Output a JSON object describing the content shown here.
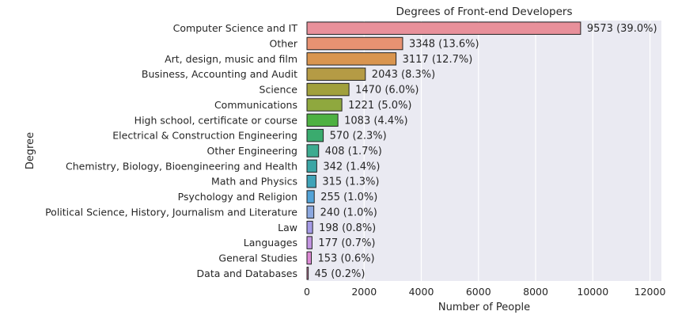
{
  "chart_data": {
    "type": "bar",
    "orientation": "horizontal",
    "title": "Degrees of Front-end Developers",
    "xlabel": "Number of People",
    "ylabel": "Degree",
    "xlim": [
      0,
      12400
    ],
    "xticks": [
      0,
      2000,
      4000,
      6000,
      8000,
      10000,
      12000
    ],
    "grid": true,
    "categories": [
      "Computer Science and IT",
      "Other",
      "Art, design, music and film",
      "Business, Accounting and Audit",
      "Science",
      "Communications",
      "High school, certificate or course",
      "Electrical & Construction Engineering",
      "Other Engineering",
      "Chemistry, Biology, Bioengineering and Health",
      "Math and Physics",
      "Psychology and Religion",
      "Political Science, History, Journalism and Literature",
      "Law",
      "Languages",
      "General Studies",
      "Data and Databases"
    ],
    "values": [
      9573,
      3348,
      3117,
      2043,
      1470,
      1221,
      1083,
      570,
      408,
      342,
      315,
      255,
      240,
      198,
      177,
      153,
      45
    ],
    "data_labels": [
      "9573 (39.0%)",
      "3348 (13.6%)",
      "3117 (12.7%)",
      "2043 (8.3%)",
      "1470 (6.0%)",
      "1221 (5.0%)",
      "1083 (4.4%)",
      "570 (2.3%)",
      "408 (1.7%)",
      "342 (1.4%)",
      "315 (1.3%)",
      "255 (1.0%)",
      "240 (1.0%)",
      "198 (0.8%)",
      "177 (0.7%)",
      "153 (0.6%)",
      "45 (0.2%)"
    ],
    "colors": [
      "#e8909b",
      "#e89272",
      "#d9954f",
      "#b59b45",
      "#a1a03c",
      "#8fa83e",
      "#4eb142",
      "#3aab6e",
      "#3dab90",
      "#3ba5a5",
      "#3fa3b8",
      "#52a2d7",
      "#8ca8e0",
      "#a59be6",
      "#c496e3",
      "#dc89d4",
      "#e88fb9"
    ],
    "plot_background": "#eaeaf2",
    "edge_color": "#222222"
  }
}
